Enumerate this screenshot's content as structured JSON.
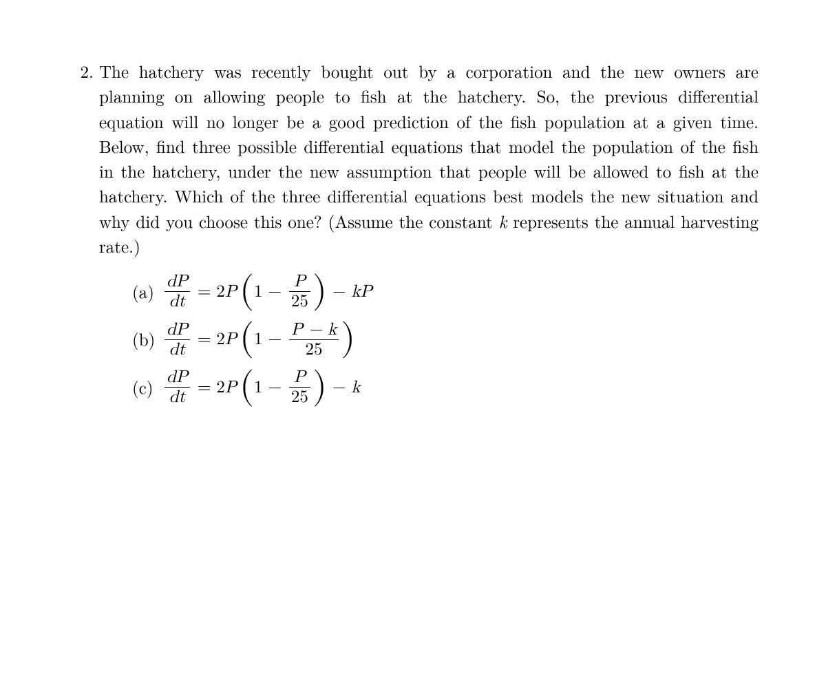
{
  "problem": {
    "number": "2.",
    "text_parts": {
      "p1": "The hatchery was recently bought out by a corporation and the new owners are planning on allowing people to fish at the hatchery. So, the previous differential equation will no longer be a good prediction of the fish population at a given time. Below, find three possible differential equations that model the population of the fish in the hatchery, under the new assumption that people will be allowed to fish at the hatchery. Which of the three differential equations best models the new situation and why did you choose this one? (Assume the constant ",
      "k": "k",
      "p2": " represents the annual harvesting rate.)"
    }
  },
  "equations": {
    "lhs": {
      "num": "dP",
      "den": "dt"
    },
    "coef": "2P",
    "one": "1",
    "inner_den": "25",
    "minus": "−",
    "eq": "=",
    "a": {
      "label": "(a)",
      "inner_num": "P",
      "tail_var": "kP"
    },
    "b": {
      "label": "(b)",
      "inner_num": "P − k"
    },
    "c": {
      "label": "(c)",
      "inner_num": "P",
      "tail_var": "k"
    }
  },
  "style": {
    "font_size_pt": 25,
    "text_color": "#000000",
    "background": "#ffffff"
  }
}
